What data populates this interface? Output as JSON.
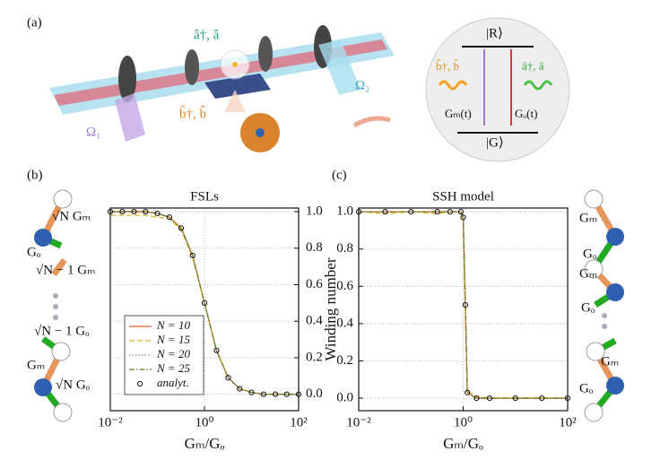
{
  "panel_labels": [
    "(a)",
    "(b)",
    "(c)"
  ],
  "illustration": {
    "a_ops": "â†, â",
    "b_ops": "b̂†, b̂",
    "omega1": "Ω₁",
    "omega2": "Ω₂",
    "levels": {
      "upper": "|R⟩",
      "lower": "|G⟩",
      "b_ops": "b̂†, b̂",
      "a_ops": "â†, â",
      "gm": "Gₘ(t)",
      "go": "Gₒ(t)"
    }
  },
  "chain_left": [
    "√N Gₘ",
    "Gₒ",
    "√N − 1 Gₘ",
    "√N − 1 Gₒ",
    "Gₘ",
    "√N Gₒ"
  ],
  "chain_right": [
    "Gₘ",
    "Gₒ",
    "Gₘ",
    "Gₒ",
    "Gₘ",
    "Gₒ"
  ],
  "chart_data": [
    {
      "type": "line",
      "title": "FSLs",
      "xlabel": "Gₘ/Gₒ",
      "xscale": "log",
      "x": [
        0.01,
        0.018,
        0.032,
        0.056,
        0.1,
        0.18,
        0.32,
        0.56,
        1,
        1.8,
        3.2,
        5.6,
        10,
        18,
        32,
        56,
        100
      ],
      "xlim": [
        0.01,
        100
      ],
      "xticks": [
        {
          "value": 0.01,
          "label": "10⁻²"
        },
        {
          "value": 1,
          "label": "10⁰"
        },
        {
          "value": 100,
          "label": "10²"
        }
      ],
      "ylim": [
        -0.09,
        1.02
      ],
      "yticks": [
        {
          "value": 0,
          "label": "0.0"
        },
        {
          "value": 0.2,
          "label": "0.2"
        },
        {
          "value": 0.4,
          "label": "0.4"
        },
        {
          "value": 0.6,
          "label": "0.6"
        },
        {
          "value": 0.8,
          "label": "0.8"
        },
        {
          "value": 1,
          "label": "1.0"
        }
      ],
      "y_axis_side": "right",
      "grid": true,
      "legend": "lower left",
      "series": [
        {
          "name": "N = 10",
          "color": "#e8603c",
          "line_style": "solid",
          "values": [
            1,
            1,
            1,
            1,
            0.99,
            0.97,
            0.91,
            0.76,
            0.5,
            0.24,
            0.09,
            0.03,
            0.01,
            0,
            0,
            0,
            0
          ]
        },
        {
          "name": "N = 15",
          "color": "#d9b32a",
          "line_style": "dashed",
          "values": [
            0.98,
            0.98,
            0.98,
            0.98,
            0.97,
            0.96,
            0.9,
            0.75,
            0.5,
            0.24,
            0.09,
            0.03,
            0.01,
            0,
            0,
            0,
            0
          ]
        },
        {
          "name": "N = 20",
          "color": "#8a8a8a",
          "line_style": "dotted",
          "values": [
            1,
            1,
            1,
            1,
            0.99,
            0.97,
            0.91,
            0.76,
            0.5,
            0.24,
            0.09,
            0.03,
            0.01,
            0,
            0,
            0,
            0
          ]
        },
        {
          "name": "N = 25",
          "color": "#6f7a1e",
          "line_style": "dashdot",
          "values": [
            1,
            1,
            1,
            1,
            0.99,
            0.97,
            0.91,
            0.76,
            0.5,
            0.24,
            0.09,
            0.03,
            0.01,
            0,
            0,
            0,
            0
          ]
        },
        {
          "name": "analyt.",
          "color": "#111111",
          "line_style": "none",
          "marker": "circle",
          "values": [
            1,
            1,
            1,
            1,
            0.99,
            0.97,
            0.91,
            0.76,
            0.5,
            0.24,
            0.09,
            0.03,
            0.01,
            0,
            0,
            0,
            0
          ]
        }
      ]
    },
    {
      "type": "line",
      "title": "SSH model",
      "xlabel": "Gₘ/Gₒ",
      "ylabel": "Winding number",
      "xscale": "log",
      "x": [
        0.01,
        0.032,
        0.1,
        0.32,
        0.56,
        0.9,
        1,
        1.1,
        1.2,
        1.8,
        3.2,
        10,
        32,
        100
      ],
      "xlim": [
        0.01,
        100
      ],
      "xticks": [
        {
          "value": 0.01,
          "label": "10⁻²"
        },
        {
          "value": 1,
          "label": "10⁰"
        },
        {
          "value": 100,
          "label": "10²"
        }
      ],
      "ylim": [
        -0.067,
        1.02
      ],
      "yticks": [
        {
          "value": 0,
          "label": "0.0"
        },
        {
          "value": 0.2,
          "label": "0.2"
        },
        {
          "value": 0.4,
          "label": "0.4"
        },
        {
          "value": 0.6,
          "label": "0.6"
        },
        {
          "value": 0.8,
          "label": "0.8"
        },
        {
          "value": 1,
          "label": "1.0"
        }
      ],
      "y_axis_side": "left",
      "grid": true,
      "series": [
        {
          "color": "#e8603c",
          "line_style": "solid",
          "values": [
            1,
            1,
            1,
            1,
            1,
            1,
            0.97,
            0.5,
            0.03,
            0,
            0,
            0,
            0,
            0
          ]
        },
        {
          "color": "#d9b32a",
          "line_style": "dashed",
          "values": [
            1,
            0.99,
            1,
            0.99,
            1,
            1,
            0.96,
            0.5,
            0.04,
            0.01,
            0,
            0,
            0,
            0
          ]
        },
        {
          "color": "#8a8a8a",
          "line_style": "dotted",
          "values": [
            1,
            1,
            1,
            1,
            1,
            1,
            0.97,
            0.5,
            0.03,
            0,
            0,
            0,
            0,
            0
          ]
        },
        {
          "color": "#6f7a1e",
          "line_style": "dashdot",
          "values": [
            1,
            1,
            1,
            1,
            1,
            1,
            0.97,
            0.5,
            0.03,
            0,
            0,
            0,
            0,
            0
          ]
        },
        {
          "color": "#111111",
          "line_style": "none",
          "marker": "circle",
          "values": [
            1,
            1,
            1,
            1,
            1,
            1,
            0.97,
            0.5,
            0.03,
            0,
            0,
            0,
            0,
            0
          ]
        }
      ]
    }
  ]
}
